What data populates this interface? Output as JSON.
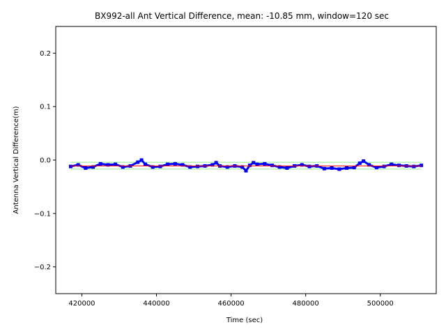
{
  "chart_data": {
    "type": "line",
    "title": "BX992-all Ant Vertical Difference, mean: -10.85 mm, window=120 sec",
    "xlabel": "Time (sec)",
    "ylabel": "Antenna Vertical Difference(m)",
    "xlim": [
      413000,
      515000
    ],
    "ylim": [
      -0.25,
      0.25
    ],
    "xticks": [
      420000,
      440000,
      460000,
      480000,
      500000
    ],
    "xtick_labels": [
      "420000",
      "440000",
      "460000",
      "480000",
      "500000"
    ],
    "yticks": [
      0.2,
      0.1,
      0.0,
      -0.1,
      -0.2
    ],
    "ytick_labels": [
      "0.2",
      "0.1",
      "0.0",
      "−0.1",
      "−0.2"
    ],
    "grid": false,
    "legend": "none",
    "series": [
      {
        "style": "markers",
        "color": "#0000ff",
        "x": [
          417000,
          419000,
          421000,
          423000,
          425000,
          427000,
          429000,
          431000,
          433000,
          435000,
          436000,
          437000,
          439000,
          441000,
          443000,
          445000,
          447000,
          449000,
          451000,
          453000,
          455000,
          456000,
          457000,
          459000,
          461000,
          463000,
          464000,
          465000,
          466000,
          467000,
          469000,
          471000,
          473000,
          475000,
          477000,
          479000,
          481000,
          483000,
          485000,
          487000,
          489000,
          491000,
          493000,
          494500,
          495500,
          497000,
          499000,
          501000,
          503000,
          505000,
          507000,
          509000,
          511000
        ],
        "values": [
          -0.012,
          -0.009,
          -0.015,
          -0.013,
          -0.007,
          -0.009,
          -0.008,
          -0.013,
          -0.011,
          -0.004,
          0.0,
          -0.008,
          -0.013,
          -0.012,
          -0.008,
          -0.007,
          -0.009,
          -0.013,
          -0.012,
          -0.011,
          -0.009,
          -0.005,
          -0.011,
          -0.013,
          -0.011,
          -0.013,
          -0.02,
          -0.01,
          -0.005,
          -0.008,
          -0.007,
          -0.01,
          -0.013,
          -0.015,
          -0.011,
          -0.009,
          -0.012,
          -0.011,
          -0.016,
          -0.015,
          -0.017,
          -0.015,
          -0.014,
          -0.006,
          -0.002,
          -0.009,
          -0.014,
          -0.012,
          -0.008,
          -0.01,
          -0.011,
          -0.012,
          -0.01
        ]
      },
      {
        "style": "line",
        "color": "#ff0000",
        "x": [
          417000,
          511000
        ],
        "values": [
          -0.011,
          -0.011
        ]
      },
      {
        "style": "line",
        "color": "#90ee90",
        "x": [
          417000,
          511000
        ],
        "values": [
          -0.004,
          -0.004
        ]
      },
      {
        "style": "line",
        "color": "#90ee90",
        "x": [
          417000,
          511000
        ],
        "values": [
          -0.017,
          -0.017
        ]
      }
    ]
  }
}
